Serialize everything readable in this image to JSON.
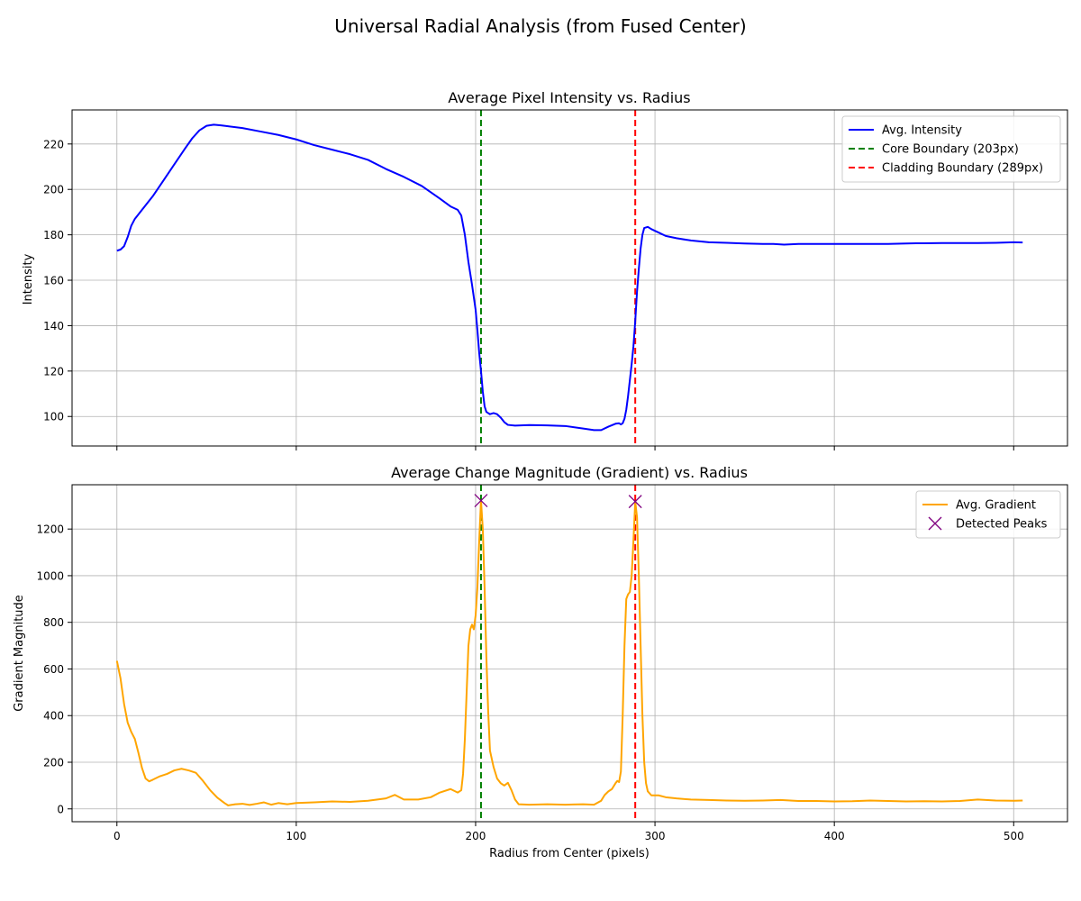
{
  "figure": {
    "suptitle": "Universal Radial Analysis (from Fused Center)"
  },
  "chart_data": [
    {
      "type": "line",
      "title": "Average Pixel Intensity vs. Radius",
      "xlabel": "",
      "ylabel": "Intensity",
      "xlim": [
        -25,
        530
      ],
      "ylim": [
        87,
        235
      ],
      "xticks": [
        0,
        100,
        200,
        300,
        400,
        500
      ],
      "yticks": [
        100,
        120,
        140,
        160,
        180,
        200,
        220
      ],
      "grid": true,
      "legend_position": "upper-right",
      "legend": [
        "Avg. Intensity",
        "Core Boundary (203px)",
        "Cladding Boundary (289px)"
      ],
      "series": [
        {
          "name": "Avg. Intensity",
          "color": "#0000ff",
          "points": [
            [
              0,
              173
            ],
            [
              2,
              173.5
            ],
            [
              4,
              175
            ],
            [
              6,
              179
            ],
            [
              8,
              184
            ],
            [
              10,
              187
            ],
            [
              14,
              191
            ],
            [
              20,
              197
            ],
            [
              26,
              204
            ],
            [
              32,
              211
            ],
            [
              38,
              218
            ],
            [
              42,
              222.5
            ],
            [
              46,
              226
            ],
            [
              50,
              228
            ],
            [
              54,
              228.5
            ],
            [
              58,
              228.2
            ],
            [
              62,
              227.8
            ],
            [
              70,
              227
            ],
            [
              80,
              225.5
            ],
            [
              90,
              224
            ],
            [
              100,
              222
            ],
            [
              110,
              219.5
            ],
            [
              120,
              217.5
            ],
            [
              130,
              215.5
            ],
            [
              140,
              213
            ],
            [
              150,
              209
            ],
            [
              160,
              205.5
            ],
            [
              170,
              201.5
            ],
            [
              180,
              196
            ],
            [
              186,
              192.5
            ],
            [
              190,
              191
            ],
            [
              192,
              188.5
            ],
            [
              194,
              180
            ],
            [
              196,
              168
            ],
            [
              198,
              158
            ],
            [
              200,
              147
            ],
            [
              201,
              138
            ],
            [
              202,
              128
            ],
            [
              203,
              120
            ],
            [
              204,
              111
            ],
            [
              205,
              104.5
            ],
            [
              206,
              102
            ],
            [
              208,
              101
            ],
            [
              210,
              101.5
            ],
            [
              212,
              101
            ],
            [
              214,
              99.5
            ],
            [
              216,
              97.5
            ],
            [
              218,
              96.3
            ],
            [
              222,
              96
            ],
            [
              230,
              96.2
            ],
            [
              240,
              96.1
            ],
            [
              250,
              95.8
            ],
            [
              260,
              94.7
            ],
            [
              266,
              94
            ],
            [
              270,
              94
            ],
            [
              274,
              95.5
            ],
            [
              278,
              96.8
            ],
            [
              280,
              97
            ],
            [
              281,
              96.5
            ],
            [
              282,
              97
            ],
            [
              283,
              99
            ],
            [
              284,
              103
            ],
            [
              285,
              109
            ],
            [
              286,
              116
            ],
            [
              287,
              123
            ],
            [
              288,
              131
            ],
            [
              289,
              142
            ],
            [
              290,
              155
            ],
            [
              291,
              165
            ],
            [
              292,
              174
            ],
            [
              293,
              180
            ],
            [
              294,
              183
            ],
            [
              296,
              183.5
            ],
            [
              298,
              182.5
            ],
            [
              302,
              181
            ],
            [
              306,
              179.5
            ],
            [
              312,
              178.5
            ],
            [
              320,
              177.5
            ],
            [
              330,
              176.7
            ],
            [
              340,
              176.5
            ],
            [
              350,
              176.2
            ],
            [
              360,
              176
            ],
            [
              366,
              176
            ],
            [
              372,
              175.7
            ],
            [
              380,
              176
            ],
            [
              390,
              176
            ],
            [
              400,
              176
            ],
            [
              410,
              176
            ],
            [
              420,
              176
            ],
            [
              430,
              176
            ],
            [
              440,
              176.2
            ],
            [
              450,
              176.3
            ],
            [
              460,
              176.4
            ],
            [
              470,
              176.4
            ],
            [
              480,
              176.4
            ],
            [
              490,
              176.5
            ],
            [
              500,
              176.7
            ],
            [
              505,
              176.6
            ]
          ]
        }
      ],
      "vlines": [
        {
          "x": 203,
          "color": "#008000",
          "label": "Core Boundary (203px)"
        },
        {
          "x": 289,
          "color": "#ff0000",
          "label": "Cladding Boundary (289px)"
        }
      ]
    },
    {
      "type": "line",
      "title": "Average Change Magnitude (Gradient) vs. Radius",
      "xlabel": "Radius from Center (pixels)",
      "ylabel": "Gradient Magnitude",
      "xlim": [
        -25,
        530
      ],
      "ylim": [
        -55,
        1390
      ],
      "xticks": [
        0,
        100,
        200,
        300,
        400,
        500
      ],
      "yticks": [
        0,
        200,
        400,
        600,
        800,
        1000,
        1200
      ],
      "grid": true,
      "legend_position": "upper-right",
      "legend": [
        "Avg. Gradient",
        "Detected Peaks"
      ],
      "series": [
        {
          "name": "Avg. Gradient",
          "color": "#ffa500",
          "points": [
            [
              0,
              635
            ],
            [
              2,
              560
            ],
            [
              4,
              450
            ],
            [
              6,
              370
            ],
            [
              8,
              330
            ],
            [
              10,
              300
            ],
            [
              12,
              240
            ],
            [
              14,
              175
            ],
            [
              16,
              130
            ],
            [
              18,
              118
            ],
            [
              20,
              125
            ],
            [
              24,
              140
            ],
            [
              28,
              150
            ],
            [
              32,
              165
            ],
            [
              36,
              172
            ],
            [
              40,
              165
            ],
            [
              44,
              155
            ],
            [
              48,
              120
            ],
            [
              52,
              80
            ],
            [
              56,
              48
            ],
            [
              60,
              25
            ],
            [
              62,
              15
            ],
            [
              66,
              20
            ],
            [
              70,
              22
            ],
            [
              74,
              17
            ],
            [
              78,
              22
            ],
            [
              82,
              28
            ],
            [
              86,
              18
            ],
            [
              90,
              25
            ],
            [
              95,
              20
            ],
            [
              100,
              25
            ],
            [
              110,
              28
            ],
            [
              120,
              32
            ],
            [
              130,
              30
            ],
            [
              140,
              35
            ],
            [
              150,
              45
            ],
            [
              155,
              60
            ],
            [
              160,
              40
            ],
            [
              168,
              40
            ],
            [
              175,
              50
            ],
            [
              180,
              70
            ],
            [
              186,
              85
            ],
            [
              190,
              70
            ],
            [
              192,
              80
            ],
            [
              193,
              150
            ],
            [
              194,
              300
            ],
            [
              195,
              500
            ],
            [
              196,
              700
            ],
            [
              197,
              770
            ],
            [
              198,
              790
            ],
            [
              199,
              770
            ],
            [
              200,
              830
            ],
            [
              201,
              950
            ],
            [
              202,
              1150
            ],
            [
              203,
              1322
            ],
            [
              204,
              1200
            ],
            [
              205,
              950
            ],
            [
              206,
              650
            ],
            [
              207,
              420
            ],
            [
              208,
              250
            ],
            [
              210,
              180
            ],
            [
              212,
              130
            ],
            [
              214,
              110
            ],
            [
              216,
              100
            ],
            [
              218,
              112
            ],
            [
              220,
              80
            ],
            [
              222,
              40
            ],
            [
              224,
              20
            ],
            [
              230,
              18
            ],
            [
              240,
              20
            ],
            [
              250,
              18
            ],
            [
              260,
              20
            ],
            [
              266,
              18
            ],
            [
              270,
              35
            ],
            [
              272,
              60
            ],
            [
              274,
              75
            ],
            [
              276,
              85
            ],
            [
              278,
              110
            ],
            [
              279,
              120
            ],
            [
              280,
              115
            ],
            [
              281,
              160
            ],
            [
              282,
              400
            ],
            [
              283,
              700
            ],
            [
              284,
              900
            ],
            [
              285,
              920
            ],
            [
              286,
              930
            ],
            [
              287,
              1000
            ],
            [
              288,
              1150
            ],
            [
              289,
              1318
            ],
            [
              290,
              1250
            ],
            [
              291,
              1000
            ],
            [
              292,
              700
            ],
            [
              293,
              400
            ],
            [
              294,
              200
            ],
            [
              295,
              110
            ],
            [
              296,
              75
            ],
            [
              298,
              58
            ],
            [
              302,
              58
            ],
            [
              306,
              50
            ],
            [
              312,
              45
            ],
            [
              320,
              40
            ],
            [
              330,
              38
            ],
            [
              340,
              36
            ],
            [
              350,
              35
            ],
            [
              360,
              36
            ],
            [
              370,
              38
            ],
            [
              380,
              34
            ],
            [
              390,
              34
            ],
            [
              400,
              32
            ],
            [
              410,
              33
            ],
            [
              420,
              36
            ],
            [
              430,
              34
            ],
            [
              440,
              32
            ],
            [
              450,
              33
            ],
            [
              460,
              32
            ],
            [
              470,
              34
            ],
            [
              480,
              40
            ],
            [
              490,
              36
            ],
            [
              500,
              35
            ],
            [
              505,
              36
            ]
          ]
        },
        {
          "name": "Detected Peaks",
          "color": "#800080",
          "marker": "x",
          "points": [
            [
              203,
              1322
            ],
            [
              289,
              1318
            ]
          ]
        }
      ],
      "vlines": [
        {
          "x": 203,
          "color": "#008000"
        },
        {
          "x": 289,
          "color": "#ff0000"
        }
      ]
    }
  ]
}
